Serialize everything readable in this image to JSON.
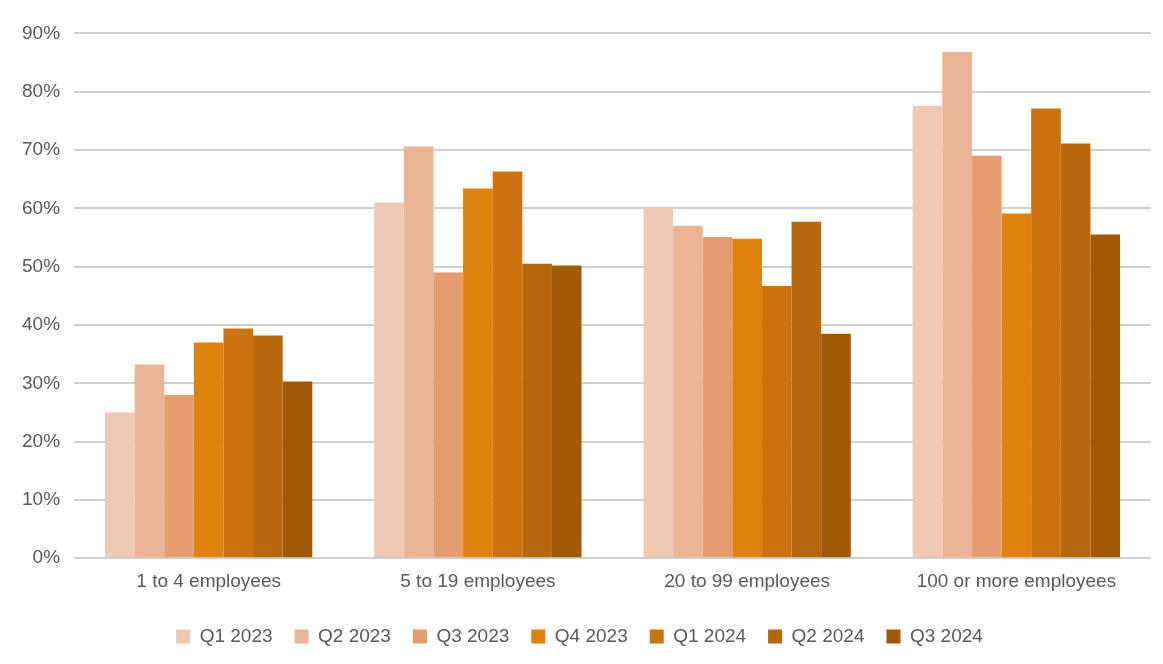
{
  "chart_data": {
    "type": "bar",
    "categories": [
      "1 to 4 employees",
      "5 to 19 employees",
      "20 to 99 employees",
      "100 or more employees"
    ],
    "series": [
      {
        "name": "Q1 2023",
        "color": "#f0c9b5",
        "values": [
          25,
          61,
          60,
          77.6
        ]
      },
      {
        "name": "Q2 2023",
        "color": "#eab497",
        "values": [
          33.2,
          70.6,
          57,
          86.8
        ]
      },
      {
        "name": "Q3 2023",
        "color": "#e59c6e",
        "values": [
          28,
          49,
          55.1,
          69
        ]
      },
      {
        "name": "Q4 2023",
        "color": "#e0820e",
        "values": [
          37,
          63.4,
          54.8,
          59.1
        ]
      },
      {
        "name": "Q1 2024",
        "color": "#cc7310",
        "values": [
          39.4,
          66.3,
          46.7,
          77.1
        ]
      },
      {
        "name": "Q2 2024",
        "color": "#b8680c",
        "values": [
          38.2,
          50.5,
          57.7,
          71.1
        ]
      },
      {
        "name": "Q3 2024",
        "color": "#a05a06",
        "values": [
          30.3,
          50.2,
          38.5,
          55.5
        ]
      }
    ],
    "ylim": [
      0,
      90
    ],
    "yticks": [
      {
        "value": 0,
        "label": "0%"
      },
      {
        "value": 10,
        "label": "10%"
      },
      {
        "value": 20,
        "label": "20%"
      },
      {
        "value": 30,
        "label": "30%"
      },
      {
        "value": 40,
        "label": "40%"
      },
      {
        "value": 50,
        "label": "50%"
      },
      {
        "value": 60,
        "label": "60%"
      },
      {
        "value": 70,
        "label": "70%"
      },
      {
        "value": 80,
        "label": "80%"
      },
      {
        "value": 90,
        "label": "90%"
      }
    ],
    "grid": "y",
    "legend": "bottom"
  }
}
